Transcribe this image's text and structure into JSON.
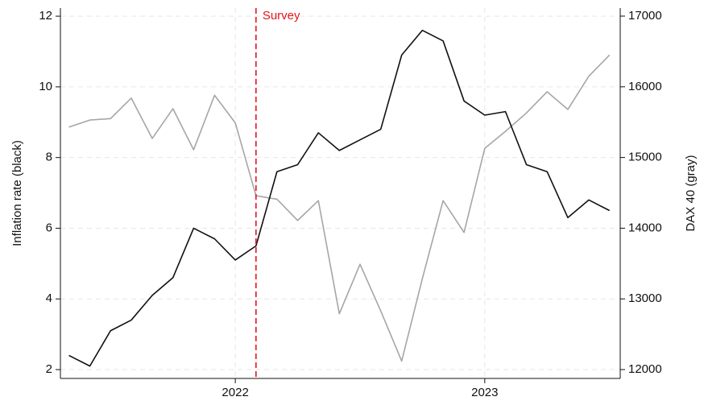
{
  "chart_data": {
    "type": "line",
    "x": [
      2021.333,
      2021.417,
      2021.5,
      2021.583,
      2021.667,
      2021.75,
      2021.833,
      2021.917,
      2022,
      2022.083,
      2022.167,
      2022.25,
      2022.333,
      2022.417,
      2022.5,
      2022.583,
      2022.667,
      2022.75,
      2022.833,
      2022.917,
      2023,
      2023.083,
      2023.167,
      2023.25,
      2023.333,
      2023.417,
      2023.5
    ],
    "series": [
      {
        "name": "Inflation rate",
        "color": "#111111",
        "values": [
          2.4,
          2.1,
          3.1,
          3.4,
          4.1,
          4.6,
          6.0,
          5.7,
          5.1,
          5.5,
          7.6,
          7.8,
          8.7,
          8.2,
          8.5,
          8.8,
          10.9,
          11.6,
          11.3,
          9.6,
          9.2,
          9.3,
          7.8,
          7.6,
          6.3,
          6.8,
          6.5
        ]
      },
      {
        "name": "DAX 40",
        "color": "#a6a6a6",
        "axis": "y2",
        "values": [
          15430,
          15530,
          15550,
          15840,
          15270,
          15690,
          15110,
          15880,
          15490,
          14460,
          14410,
          14110,
          14390,
          12790,
          13490,
          12830,
          12120,
          13290,
          14390,
          13940,
          15130,
          15370,
          15630,
          15930,
          15680,
          16150,
          16450
        ]
      }
    ],
    "ylabel": "Inflation rate (black)",
    "y2label": "DAX 40 (gray)",
    "xlim": [
      2021.299,
      2023.543
    ],
    "xticks": [
      2022,
      2023
    ],
    "ylim": [
      1.75,
      12.23
    ],
    "yticks": [
      2,
      4,
      6,
      8,
      10,
      12
    ],
    "y2lim": [
      11875,
      17114
    ],
    "y2ticks": [
      12000,
      13000,
      14000,
      15000,
      16000,
      17000
    ],
    "grid": true,
    "annotation": {
      "text": "Survey",
      "x": 2022.083,
      "color": "#e8141c"
    }
  }
}
